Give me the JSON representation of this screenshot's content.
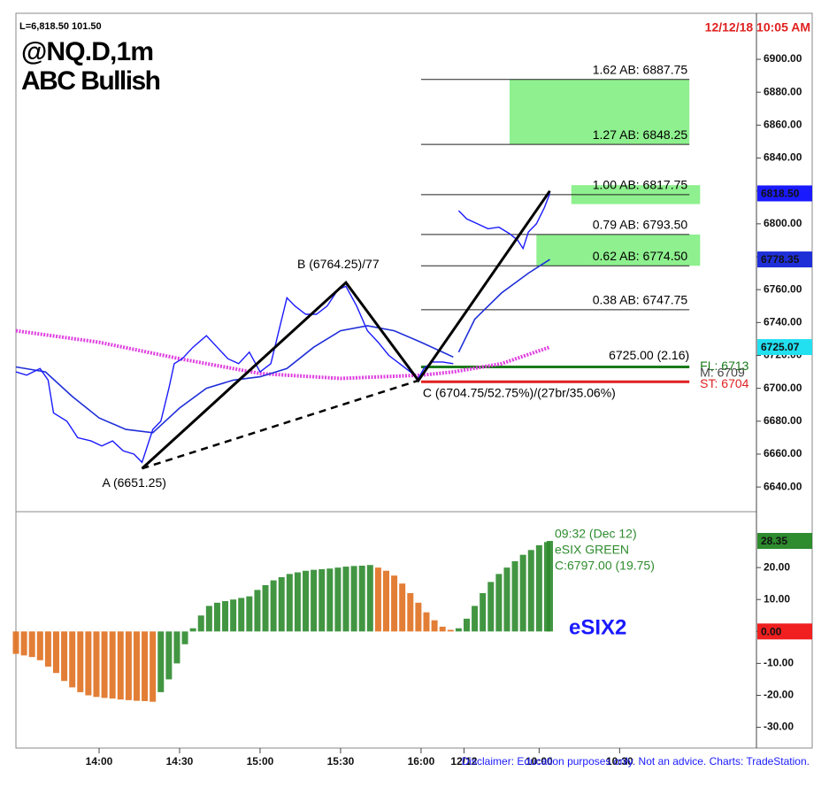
{
  "chart_data": [
    {
      "type": "line",
      "quote": "L=6,818.50   101.50",
      "timestamp": "12/12/18 10:05 AM",
      "title": "@NQ.D,1m",
      "subtitle": "ABC Bullish",
      "xlim": [
        -31,
        245
      ],
      "ylim": [
        6625,
        6928
      ],
      "yticks": [
        {
          "value": 6640,
          "label": "6640.00"
        },
        {
          "value": 6660,
          "label": "6660.00"
        },
        {
          "value": 6680,
          "label": "6680.00"
        },
        {
          "value": 6700,
          "label": "6700.00"
        },
        {
          "value": 6720,
          "label": "6720.00"
        },
        {
          "value": 6740,
          "label": "6740.00"
        },
        {
          "value": 6760,
          "label": "6760.00"
        },
        {
          "value": 6780,
          "label": "6780.00"
        },
        {
          "value": 6800,
          "label": "6800.00"
        },
        {
          "value": 6820,
          "label": "6820.00"
        },
        {
          "value": 6840,
          "label": "6840.00"
        },
        {
          "value": 6860,
          "label": "6860.00"
        },
        {
          "value": 6880,
          "label": "6880.00"
        },
        {
          "value": 6900,
          "label": "6900.00"
        }
      ],
      "series": [
        {
          "color": "#e040e0",
          "width": 4,
          "dashed": true,
          "x": [
            -31,
            0,
            30,
            60,
            90,
            120,
            132,
            150,
            168
          ],
          "values": [
            6735,
            6728,
            6718,
            6709,
            6706,
            6708,
            6710,
            6715,
            6725.07
          ]
        },
        {
          "color": "#1f2fd8",
          "width": 1.6,
          "dashed": false,
          "x": [
            -31,
            -20,
            -10,
            0,
            10,
            20,
            30,
            40,
            50,
            60,
            70,
            80,
            90,
            100,
            110,
            120,
            132,
            133,
            134,
            140,
            150,
            160,
            168
          ],
          "values": [
            6713,
            6710,
            6695,
            6682,
            6675,
            6673,
            6688,
            6700,
            6705,
            6707,
            6712,
            6725,
            6735,
            6738,
            6735,
            6728,
            6719,
            null,
            6722,
            6742,
            6758,
            6770,
            6778.35
          ]
        },
        {
          "color": "#1a1aff",
          "width": 1.4,
          "dashed": false,
          "x": [
            -31,
            -27,
            -22,
            -19,
            -17,
            -12,
            -8,
            -3,
            1,
            5,
            9,
            13,
            16,
            17,
            20,
            23,
            26,
            28,
            31,
            35,
            40,
            44,
            48,
            52,
            56,
            60,
            64,
            67,
            70,
            73,
            77,
            81,
            85,
            89,
            92,
            96,
            100,
            104,
            108,
            112,
            116,
            119,
            121,
            124,
            128,
            132,
            133,
            134,
            137,
            141,
            145,
            149,
            153,
            156,
            158,
            160,
            163,
            166,
            168
          ],
          "values": [
            6710,
            6708,
            6712,
            6705,
            6685,
            6680,
            6670,
            6668,
            6665,
            6668,
            6662,
            6660,
            6655,
            6660,
            6675,
            6680,
            6700,
            6715,
            6718,
            6725,
            6732,
            6725,
            6718,
            6715,
            6722,
            6710,
            6715,
            6735,
            6755,
            6750,
            6745,
            6745,
            6750,
            6760,
            6762,
            6750,
            6735,
            6728,
            6720,
            6715,
            6710,
            6706,
            6712,
            6716,
            6716,
            6715,
            null,
            6808,
            6803,
            6800,
            6797,
            6798,
            6794,
            6790,
            6785,
            6795,
            6800,
            6810,
            6818.5
          ]
        }
      ],
      "zones": [
        {
          "x": [
            153,
            220
          ],
          "from": 6848.25,
          "to": 6887.75,
          "color": "#8ef08e"
        },
        {
          "x": [
            176,
            224
          ],
          "from": 6812,
          "to": 6823.5,
          "color": "#8ef08e"
        },
        {
          "x": [
            163,
            224
          ],
          "from": 6774.5,
          "to": 6793.5,
          "color": "#8ef08e"
        }
      ],
      "level_x": [
        120,
        220
      ],
      "levels": [
        {
          "value": 6887.75,
          "label": "1.62 AB: 6887.75"
        },
        {
          "value": 6848.25,
          "label": "1.27 AB: 6848.25"
        },
        {
          "value": 6817.75,
          "label": "1.00 AB: 6817.75"
        },
        {
          "value": 6793.5,
          "label": "0.79 AB: 6793.50"
        },
        {
          "value": 6774.5,
          "label": "0.62 AB: 6774.50"
        },
        {
          "value": 6747.75,
          "label": "0.38 AB: 6747.75"
        }
      ],
      "pattern": [
        {
          "label": "A (6651.25)",
          "x": 16,
          "y": 6651.25
        },
        {
          "label": "B (6764.25)/77",
          "x": 92,
          "y": 6764.25
        },
        {
          "label": "C (6704.75/52.75%)/(27br/35.06%)",
          "x": 119,
          "y": 6704.75
        }
      ],
      "target": {
        "x": 168,
        "y": 6820
      },
      "entry_label": "6725.00 (2.16)",
      "stops": [
        {
          "value": 6713,
          "label": "FL: 6713",
          "color": "#1a7a1a"
        },
        {
          "value": 6709,
          "label": "M: 6709",
          "color": "#444444"
        },
        {
          "value": 6704,
          "label": "ST: 6704",
          "color": "#e02020"
        }
      ],
      "last_labels": [
        {
          "value": 6818.5,
          "label": "6818.50",
          "color": "#1a1aff"
        },
        {
          "value": 6778.35,
          "label": "6778.35",
          "color": "#1f2fd8"
        },
        {
          "value": 6725.07,
          "label": "6725.07",
          "color": "#22e0f0"
        }
      ]
    },
    {
      "type": "bar",
      "name": "eSIX2",
      "annotation": [
        "09:32 (Dec 12)",
        "eSIX GREEN",
        "C:6797.00 (19.75)"
      ],
      "xlim": [
        -31,
        245
      ],
      "xticks": [
        {
          "value": 0,
          "label": "14:00"
        },
        {
          "value": 30,
          "label": "14:30"
        },
        {
          "value": 60,
          "label": "15:00"
        },
        {
          "value": 90,
          "label": "15:30"
        },
        {
          "value": 120,
          "label": "16:00"
        },
        {
          "value": 136,
          "label": "12/12"
        },
        {
          "value": 164,
          "label": "10:00"
        },
        {
          "value": 194,
          "label": "10:30"
        }
      ],
      "ylim": [
        -36.5,
        37.5
      ],
      "yticks": [
        {
          "value": 20,
          "label": "20.00"
        },
        {
          "value": 10,
          "label": "10.00"
        },
        {
          "value": 0,
          "label": "0.00"
        },
        {
          "value": -10,
          "label": "-10.00"
        },
        {
          "value": -20,
          "label": "-20.00"
        },
        {
          "value": -30,
          "label": "-30.00"
        }
      ],
      "rising_color": "#2e8b2e",
      "falling_color": "#e07020",
      "x": [
        -31,
        -28,
        -25,
        -22,
        -19,
        -16,
        -13,
        -10,
        -7,
        -4,
        -1,
        2,
        5,
        8,
        11,
        14,
        17,
        20,
        23,
        26,
        29,
        32,
        35,
        38,
        41,
        44,
        47,
        50,
        53,
        56,
        59,
        62,
        65,
        68,
        71,
        74,
        77,
        80,
        83,
        86,
        89,
        92,
        95,
        98,
        101,
        104,
        107,
        110,
        113,
        116,
        119,
        122,
        125,
        128,
        131,
        134,
        137,
        140,
        143,
        146,
        149,
        152,
        155,
        158,
        161,
        164,
        167,
        168
      ],
      "values": [
        -7,
        -7.5,
        -8,
        -9,
        -11,
        -13,
        -15.5,
        -17.5,
        -19,
        -20,
        -20.5,
        -20.8,
        -21,
        -21.3,
        -21.5,
        -21.7,
        -21.8,
        -22,
        -19,
        -15,
        -10,
        -4,
        1,
        5,
        8,
        9,
        9.5,
        10,
        10.5,
        11,
        13,
        14.5,
        16,
        17,
        18,
        18.5,
        19,
        19.3,
        19.5,
        19.7,
        20,
        20.3,
        20.5,
        20.6,
        20.8,
        20,
        19,
        17.5,
        15,
        12,
        9,
        6,
        3.5,
        1.5,
        0.5,
        1,
        4,
        8,
        12,
        15.5,
        18,
        20,
        22,
        24,
        25.5,
        27,
        28,
        28.35
      ],
      "last_labels": [
        {
          "value": 28.35,
          "label": "28.35",
          "color": "#2e8b2e"
        },
        {
          "value": 0,
          "label": "0.00",
          "color": "#f02020"
        }
      ]
    }
  ],
  "footer": "Disclaimer: Education purposes only. Not an advice.  Charts: TradeStation."
}
